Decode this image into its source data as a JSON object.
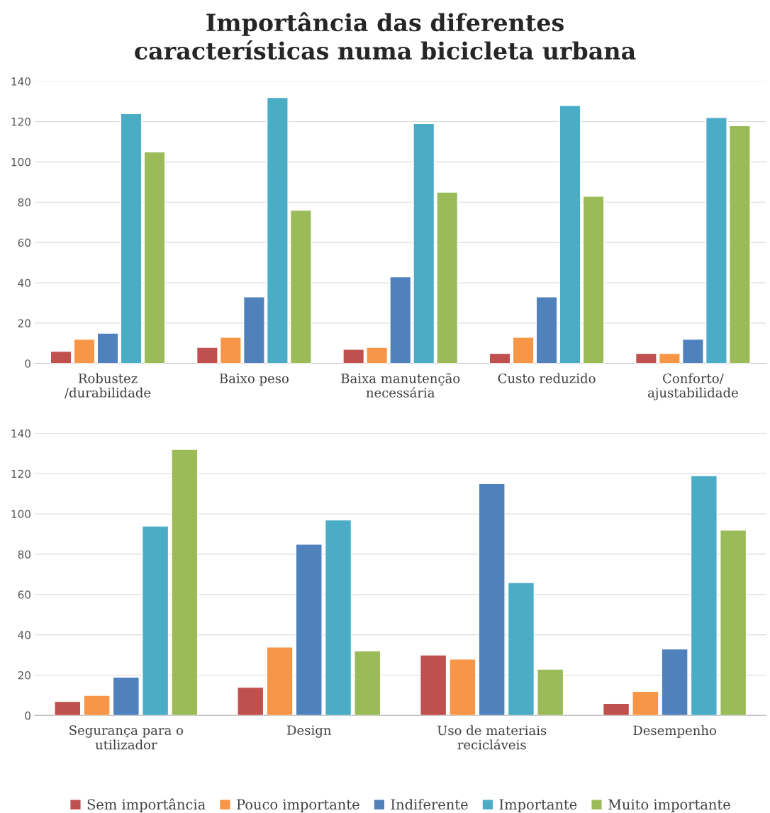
{
  "chart_data": [
    {
      "type": "bar",
      "title": "Importância das diferentes\ncaracterísticas numa bicicleta urbana",
      "categories": [
        "Robustez\n/durabilidade",
        "Baixo peso",
        "Baixa manutenção\nnecessária",
        "Custo reduzido",
        "Conforto/\najustabilidade"
      ],
      "ylim": [
        0,
        140
      ],
      "yticks": [
        0,
        20,
        40,
        60,
        80,
        100,
        120,
        140
      ],
      "grid": "y",
      "series": [
        {
          "color": "#c0504d",
          "values": [
            6,
            8,
            7,
            5,
            5
          ]
        },
        {
          "color": "#f79646",
          "values": [
            12,
            13,
            8,
            13,
            5
          ]
        },
        {
          "color": "#4f81bd",
          "values": [
            15,
            33,
            43,
            33,
            12
          ]
        },
        {
          "color": "#4bacc6",
          "values": [
            124,
            132,
            119,
            128,
            122
          ]
        },
        {
          "color": "#9bbb59",
          "values": [
            105,
            76,
            85,
            83,
            118
          ]
        }
      ]
    },
    {
      "type": "bar",
      "categories": [
        "Segurança para o\nutilizador",
        "Design",
        "Uso de materiais\nrecicláveis",
        "Desempenho"
      ],
      "ylim": [
        0,
        140
      ],
      "yticks": [
        0,
        20,
        40,
        60,
        80,
        100,
        120,
        140
      ],
      "grid": "y",
      "legend": "bottom",
      "series": [
        {
          "name": "Sem importância",
          "color": "#c0504d",
          "values": [
            7,
            14,
            30,
            6
          ]
        },
        {
          "name": "Pouco importante",
          "color": "#f79646",
          "values": [
            10,
            34,
            28,
            12
          ]
        },
        {
          "name": "Indiferente",
          "color": "#4f81bd",
          "values": [
            19,
            85,
            115,
            33
          ]
        },
        {
          "name": "Importante",
          "color": "#4bacc6",
          "values": [
            94,
            97,
            66,
            119
          ]
        },
        {
          "name": "Muito importante",
          "color": "#9bbb59",
          "values": [
            132,
            32,
            23,
            92
          ]
        }
      ]
    }
  ]
}
